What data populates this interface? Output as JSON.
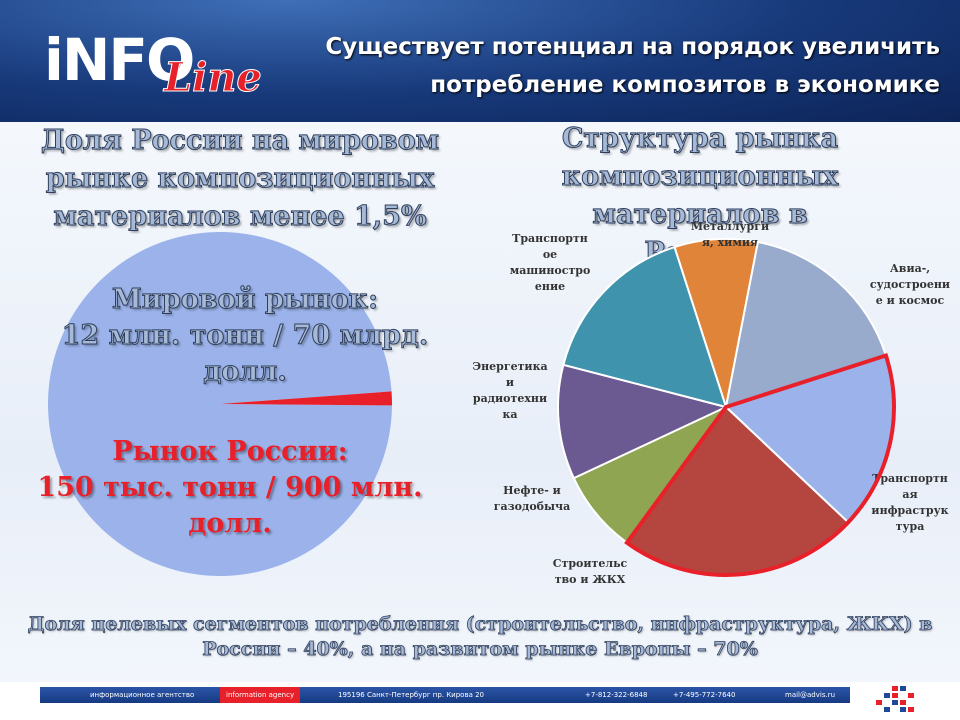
{
  "header": {
    "logo_text": "iNFO",
    "logo_script": "Line",
    "title_line1": "Существует потенциал на порядок увеличить",
    "title_line2": "потребление композитов в экономике"
  },
  "left": {
    "heading_line1": "Доля России на мировом",
    "heading_line2": "рынке композиционных",
    "heading_line3": "материалов менее 1,5%",
    "world_label": "Мировой рынок:",
    "world_value": "12 млн. тонн / 70 млрд. долл.",
    "russia_label": "Рынок России:",
    "russia_value": "150 тыс. тонн / 900 млн. долл."
  },
  "right": {
    "heading_line1": "Структура рынка",
    "heading_line2": "композиционных",
    "heading_line3": "материалов в России"
  },
  "chart_data": [
    {
      "type": "pie",
      "title": "",
      "slices": [
        {
          "label": "Мировой рынок",
          "value": 98.7,
          "color": "#9bb3ea"
        },
        {
          "label": "Рынок России",
          "value": 1.3,
          "color": "#e8202a"
        }
      ]
    },
    {
      "type": "pie",
      "title": "Структура рынка композиционных материалов в России",
      "slices": [
        {
          "label": [
            "Металлурги",
            "я, химия"
          ],
          "value": 8,
          "color": "#e0843a"
        },
        {
          "label": [
            "Авиа-,",
            "судостроени",
            "е и космос"
          ],
          "value": 17,
          "color": "#98abcd"
        },
        {
          "label": [
            "Транспортн",
            "ая",
            "инфраструк",
            "тура"
          ],
          "value": 17,
          "color": "#9bb3ea",
          "highlight": true
        },
        {
          "label": [
            "Строительс",
            "тво и ЖКХ"
          ],
          "value": 23,
          "color": "#b5453f",
          "highlight": true
        },
        {
          "label": [
            "Нефте- и",
            "газодобыча"
          ],
          "value": 8,
          "color": "#8fa552"
        },
        {
          "label": [
            "Энергетика",
            "и",
            "радиотехни",
            "ка"
          ],
          "value": 11,
          "color": "#6b5a92"
        },
        {
          "label": [
            "Транспортн",
            "ое",
            "машиностро",
            "ение"
          ],
          "value": 16,
          "color": "#3f93ac"
        }
      ]
    }
  ],
  "bottom_note": {
    "line1": "Доля целевых сегментов потребления (строительство, инфраструктура, ЖКХ) в",
    "line2": "России – 40%, а на развитом рынке Европы – 70%"
  },
  "footer": {
    "agency_ru": "информационное агентство",
    "agency_en": "information agency",
    "address": "195196 Санкт-Петербург пр. Кирова 20",
    "phone1": "+7-812-322-6848",
    "phone2": "+7-495-772-7640",
    "email": "mail@advis.ru",
    "accent": "#e8202a",
    "bar_color": "#1f479a"
  }
}
